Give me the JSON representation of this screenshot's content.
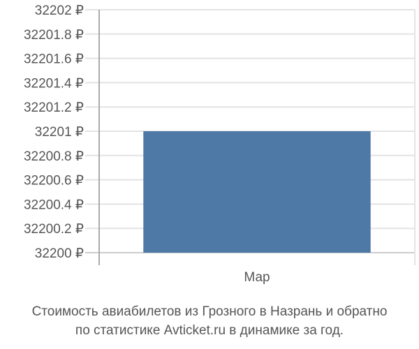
{
  "chart_data": {
    "type": "bar",
    "categories": [
      "Мар"
    ],
    "values": [
      32201
    ],
    "ylim": [
      32200,
      32202
    ],
    "yticks": [
      32200,
      32200.2,
      32200.4,
      32200.6,
      32200.8,
      32201,
      32201.2,
      32201.4,
      32201.6,
      32201.8,
      32202
    ],
    "ytick_labels": [
      "32200 ₽",
      "32200.2 ₽",
      "32200.4 ₽",
      "32200.6 ₽",
      "32200.8 ₽",
      "32201 ₽",
      "32201.2 ₽",
      "32201.4 ₽",
      "32201.6 ₽",
      "32201.8 ₽",
      "32202 ₽"
    ],
    "grid": true,
    "bar_color": "#4e79a7"
  },
  "caption": {
    "line1": "Стоимость авиабилетов из Грозного в Назрань и обратно",
    "line2": "по статистике Avticket.ru в динамике за год."
  }
}
